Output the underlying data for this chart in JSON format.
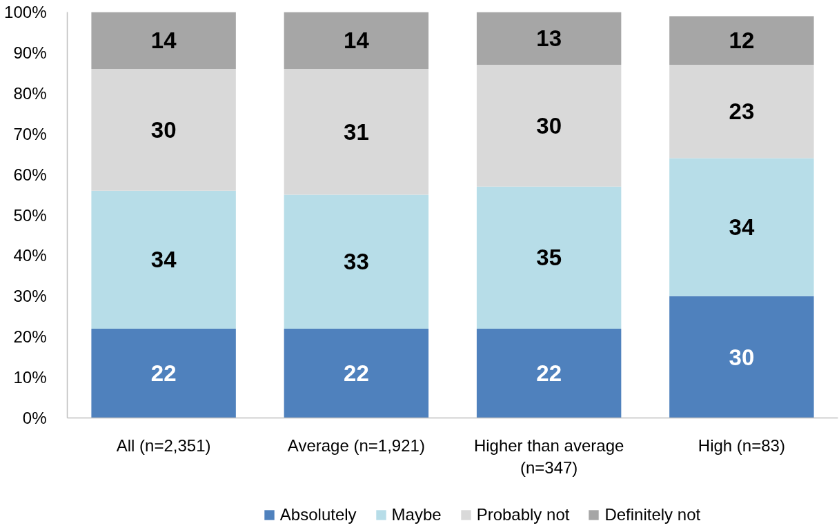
{
  "chart_data": {
    "type": "bar",
    "stacked": true,
    "categories": [
      "All (n=2,351)",
      "Average (n=1,921)",
      "Higher than average (n=347)",
      "High (n=83)"
    ],
    "series": [
      {
        "name": "Absolutely",
        "color": "#4f81bd",
        "values": [
          22,
          22,
          22,
          30
        ]
      },
      {
        "name": "Maybe",
        "color": "#b7dde8",
        "values": [
          34,
          33,
          35,
          34
        ]
      },
      {
        "name": "Probably not",
        "color": "#d9d9d9",
        "values": [
          30,
          31,
          30,
          23
        ]
      },
      {
        "name": "Definitely not",
        "color": "#a6a6a6",
        "values": [
          14,
          14,
          13,
          12
        ]
      }
    ],
    "ylim": [
      0,
      100
    ],
    "yticks": [
      {
        "value": 0,
        "label": "0%"
      },
      {
        "value": 10,
        "label": "10%"
      },
      {
        "value": 20,
        "label": "20%"
      },
      {
        "value": 30,
        "label": "30%"
      },
      {
        "value": 40,
        "label": "40%"
      },
      {
        "value": 50,
        "label": "50%"
      },
      {
        "value": 60,
        "label": "60%"
      },
      {
        "value": 70,
        "label": "70%"
      },
      {
        "value": 80,
        "label": "80%"
      },
      {
        "value": 90,
        "label": "90%"
      },
      {
        "value": 100,
        "label": "100%"
      }
    ],
    "data_labels": true,
    "grid": false,
    "legend": "bottom"
  }
}
